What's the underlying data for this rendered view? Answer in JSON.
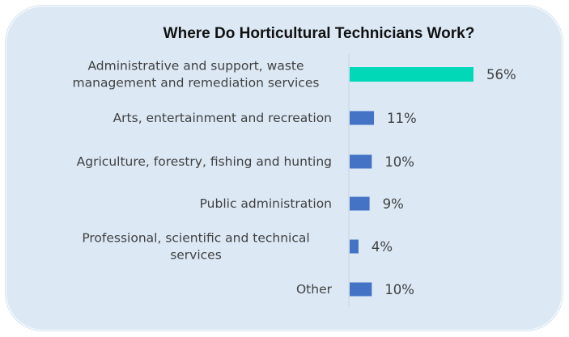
{
  "chart_data": {
    "type": "bar",
    "orientation": "horizontal",
    "title": "Where Do Horticultural Technicians Work?",
    "categories": [
      [
        "Administrative and support, waste",
        "management and remediation services"
      ],
      [
        "Arts, entertainment and recreation"
      ],
      [
        "Agriculture, forestry, fishing and hunting"
      ],
      [
        "Public administration"
      ],
      [
        "Professional, scientific and technical",
        "services"
      ],
      [
        "Other"
      ]
    ],
    "values": [
      56,
      11,
      10,
      9,
      4,
      10
    ],
    "value_labels": [
      "56%",
      "11%",
      "10%",
      "9%",
      "4%",
      "10%"
    ],
    "unit": "%",
    "xlim": [
      0,
      56
    ],
    "grid": false,
    "legend": "none",
    "colors": {
      "highlight": "#00d8b8",
      "bar": "#4472c4",
      "axis": "#c8d3de",
      "text": "#404040",
      "background": "#dce9f5"
    }
  }
}
